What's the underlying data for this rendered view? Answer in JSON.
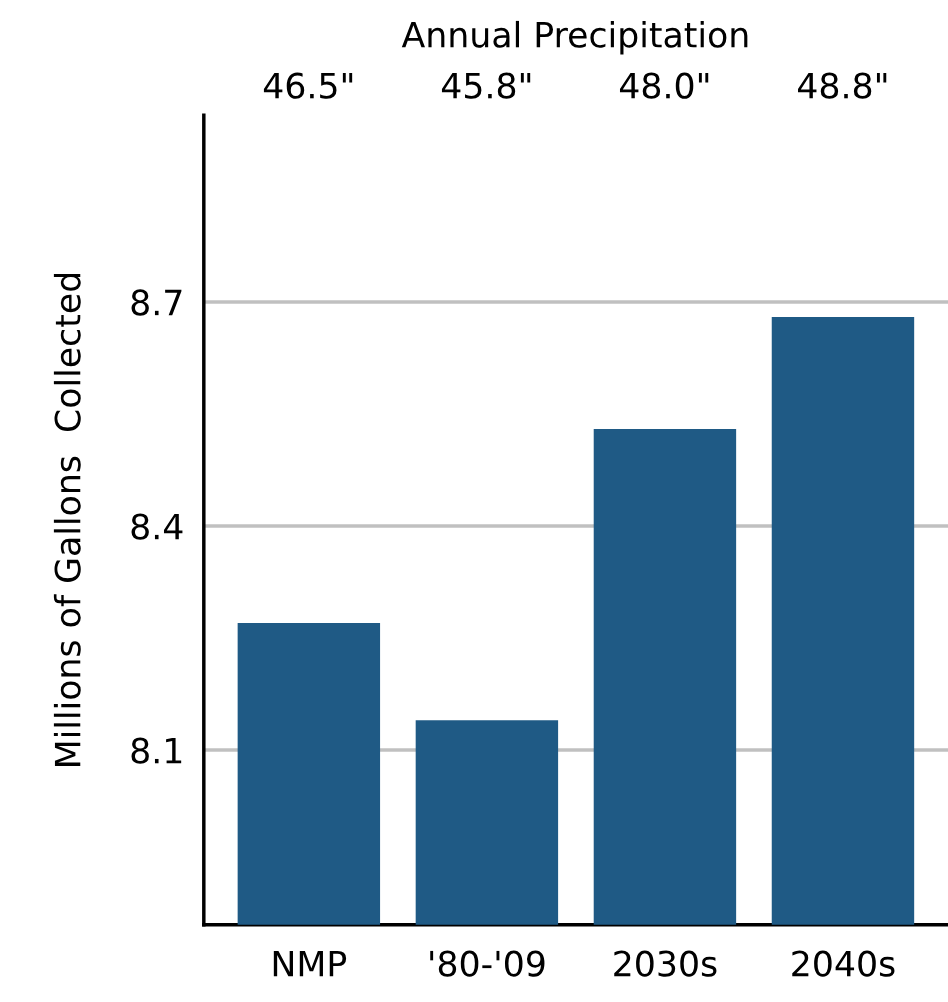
{
  "chart_data": {
    "type": "bar",
    "x2label": "Annual Precipitation",
    "ylabel": "Millions of Gallons  Collected",
    "categories": [
      "NMP",
      "'80-'09",
      "2030s",
      "2040s"
    ],
    "values": [
      8.27,
      8.14,
      8.53,
      8.68
    ],
    "color": "#1f5a85",
    "ylim": [
      7.866,
      8.95
    ],
    "yticks": [
      8.1,
      8.4,
      8.7
    ],
    "grid": "y",
    "annotations": [
      "46.5\"",
      "45.8\"",
      "48.0\"",
      "48.8\""
    ]
  }
}
